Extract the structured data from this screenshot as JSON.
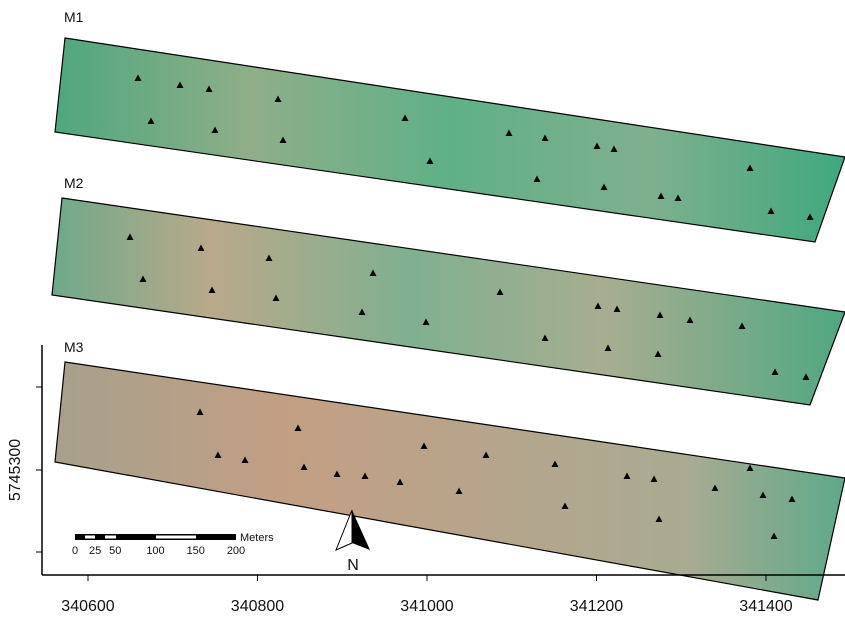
{
  "panels": [
    {
      "label": "M1"
    },
    {
      "label": "M2"
    },
    {
      "label": "M3"
    }
  ],
  "x_axis": {
    "ticks": [
      340600,
      340800,
      341000,
      341200,
      341400
    ]
  },
  "y_axis": {
    "ticks": [
      5745300
    ]
  },
  "scale_bar": {
    "ticks": [
      0,
      25,
      50,
      100,
      150,
      200
    ],
    "unit": "Meters"
  },
  "north_arrow": {
    "label": "N"
  }
}
